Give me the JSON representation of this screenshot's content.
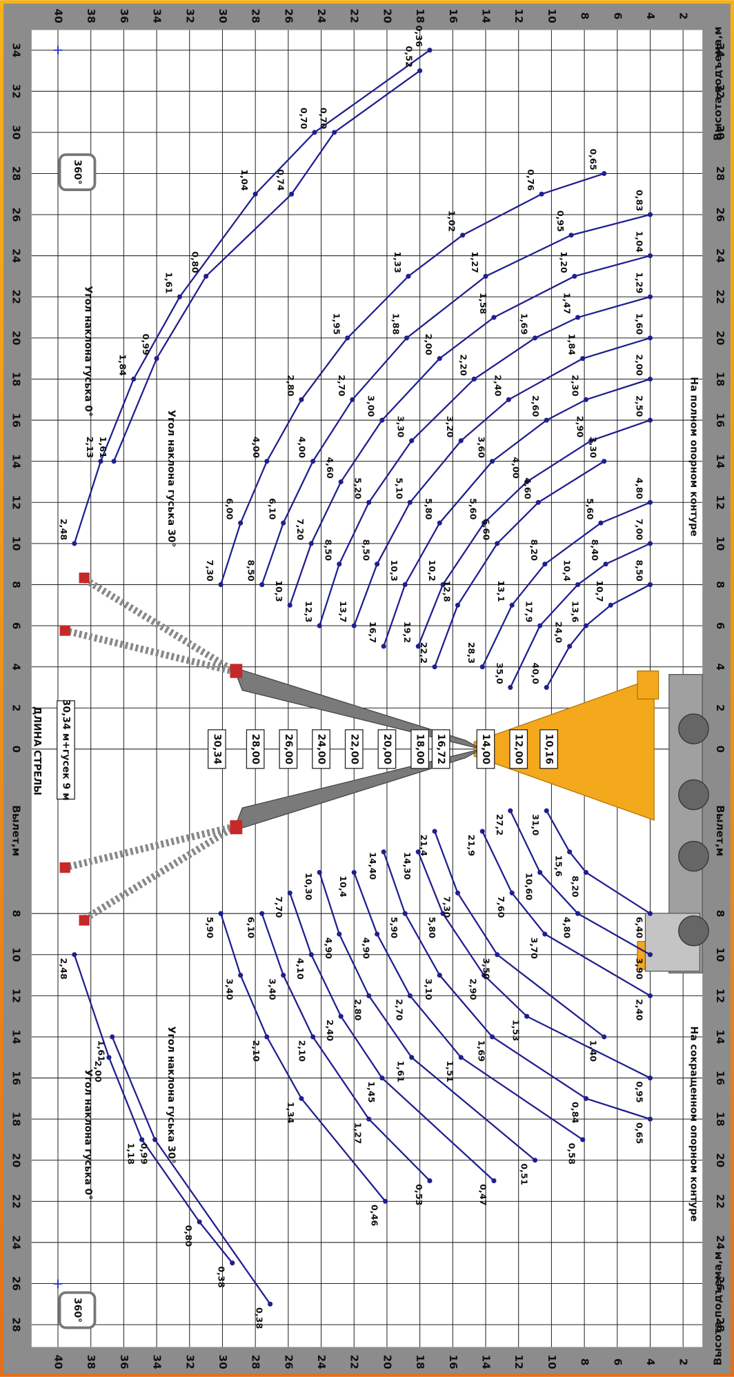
{
  "boom_length_title": "ДЛИНА СТРЕЛЫ",
  "boom_config": "30,34 м+гусек 9 м",
  "rotation_label": "360°",
  "boom_lengths": [
    {
      "value": 30.34,
      "label": "30,34"
    },
    {
      "value": 28,
      "label": "28,00"
    },
    {
      "value": 26,
      "label": "26,00"
    },
    {
      "value": 24,
      "label": "24,00"
    },
    {
      "value": 22,
      "label": "22,00"
    },
    {
      "value": 20,
      "label": "20,00"
    },
    {
      "value": 18,
      "label": "18,00"
    },
    {
      "value": 16.72,
      "label": "16,72"
    },
    {
      "value": 14,
      "label": "14,00"
    },
    {
      "value": 12,
      "label": "12,00"
    },
    {
      "value": 10.16,
      "label": "10,16"
    }
  ],
  "chart_data": [
    {
      "type": "line",
      "title": "На полном опорном контуре",
      "y_label": "Высота подъема,м",
      "xlim": [
        0,
        34
      ],
      "xticks": [
        0,
        2,
        4,
        6,
        8,
        10,
        12,
        14,
        16,
        18,
        20,
        22,
        24,
        26,
        28,
        30,
        32,
        34
      ],
      "ylim": [
        2,
        40
      ],
      "yticks": [
        2,
        4,
        6,
        8,
        10,
        12,
        14,
        16,
        18,
        20,
        22,
        24,
        26,
        28,
        30,
        32,
        34,
        36,
        38,
        40
      ],
      "grid": true,
      "series": [
        {
          "name": "Угол наклона гуська 0°",
          "color": "#1f1f8f",
          "x": [
            10,
            14,
            18,
            22,
            27,
            30,
            34
          ],
          "values": [
            39,
            37.4,
            35.4,
            32.6,
            28,
            24.4,
            17.4
          ],
          "point_labels": [
            "2,48",
            "2,13",
            "1,84",
            "1,61",
            "1,04",
            "0,70",
            "0,36"
          ]
        },
        {
          "name": "Угол наклона гуська 30°",
          "color": "#1f1f8f",
          "x": [
            14,
            19,
            23,
            27,
            30,
            33
          ],
          "values": [
            36.6,
            34,
            31,
            25.8,
            23.2,
            18
          ],
          "point_labels": [
            "1,61",
            "0,99",
            "0,80",
            "0,74",
            "0,70",
            "0,52"
          ]
        },
        {
          "color": "#1f1f8f",
          "x": [
            8,
            11,
            14,
            17,
            20,
            23,
            25,
            27,
            28
          ],
          "values": [
            30.1,
            28.9,
            27.3,
            25.2,
            22.4,
            18.7,
            15.4,
            10.6,
            6.8
          ],
          "point_labels": [
            "7,30",
            "6,00",
            "4,00",
            "2,80",
            "1,95",
            "1,33",
            "1,02",
            "0,76",
            "0,65"
          ]
        },
        {
          "color": "#1f1f8f",
          "x": [
            8,
            11,
            14,
            17,
            20,
            23,
            25,
            26
          ],
          "values": [
            27.6,
            26.3,
            24.5,
            22.1,
            18.8,
            14,
            8.8,
            4
          ],
          "point_labels": [
            "8,50",
            "6,10",
            "4,00",
            "2,70",
            "1,88",
            "1,27",
            "0,95",
            "0,83"
          ]
        },
        {
          "color": "#1f1f8f",
          "x": [
            7,
            10,
            13,
            16,
            19,
            21,
            23,
            24
          ],
          "values": [
            25.9,
            24.6,
            22.8,
            20.3,
            16.8,
            13.5,
            8.6,
            4
          ],
          "point_labels": [
            "10,3",
            "7,20",
            "4,60",
            "3,00",
            "2,00",
            "1,58",
            "1,20",
            "1,04"
          ]
        },
        {
          "color": "#1f1f8f",
          "x": [
            6,
            9,
            12,
            15,
            18,
            20,
            21,
            22
          ],
          "values": [
            24.1,
            22.9,
            21.1,
            18.5,
            14.7,
            11,
            8.4,
            4
          ],
          "point_labels": [
            "12,3",
            "8,50",
            "5,20",
            "3,30",
            "2,20",
            "1,69",
            "1,47",
            "1,29"
          ]
        },
        {
          "color": "#1f1f8f",
          "x": [
            6,
            9,
            12,
            15,
            17,
            19,
            20
          ],
          "values": [
            22,
            20.6,
            18.6,
            15.5,
            12.6,
            8.1,
            4
          ],
          "point_labels": [
            "13,7",
            "8,50",
            "5,10",
            "3,20",
            "2,40",
            "1,84",
            "1,60"
          ]
        },
        {
          "color": "#1f1f8f",
          "x": [
            5,
            8,
            11,
            14,
            16,
            17,
            18
          ],
          "values": [
            20.2,
            18.9,
            16.8,
            13.6,
            10.3,
            7.9,
            4
          ],
          "point_labels": [
            "16,7",
            "10,3",
            "5,80",
            "3,60",
            "2,60",
            "2,30",
            "2,00"
          ]
        },
        {
          "color": "#1f1f8f",
          "x": [
            5,
            8,
            11,
            13,
            15,
            16
          ],
          "values": [
            18.1,
            16.6,
            14.1,
            11.5,
            7.6,
            4
          ],
          "point_labels": [
            "19,2",
            "10,2",
            "5,60",
            "4,00",
            "2,90",
            "2,50"
          ]
        },
        {
          "color": "#1f1f8f",
          "x": [
            4,
            7,
            10,
            12,
            14
          ],
          "values": [
            17.1,
            15.7,
            13.3,
            10.8,
            6.8
          ],
          "point_labels": [
            "22,2",
            "12,8",
            "6,60",
            "4,60",
            "3,30"
          ]
        },
        {
          "color": "#1f1f8f",
          "x": [
            4,
            7,
            9,
            11,
            12
          ],
          "values": [
            14.2,
            12.4,
            10.4,
            7,
            4
          ],
          "point_labels": [
            "28,3",
            "13,1",
            "8,20",
            "5,60",
            "4,80"
          ]
        },
        {
          "color": "#1f1f8f",
          "x": [
            3,
            6,
            8,
            9,
            10
          ],
          "values": [
            12.5,
            10.7,
            8.4,
            6.7,
            4
          ],
          "point_labels": [
            "35,0",
            "17,9",
            "10,4",
            "8,40",
            "7,00"
          ]
        },
        {
          "color": "#1f1f8f",
          "x": [
            3,
            5,
            6,
            7,
            8
          ],
          "values": [
            10.3,
            8.9,
            7.9,
            6.4,
            4
          ],
          "point_labels": [
            "40,0",
            "24,0",
            "13,6",
            "10,7",
            "8,50"
          ]
        }
      ]
    },
    {
      "type": "line",
      "title": "На сокращенном опорном контуре",
      "x_label": "Вылет,м",
      "y_label": "Высота подъема,м",
      "xlim": [
        0,
        28
      ],
      "xticks": [
        8,
        10,
        12,
        14,
        16,
        18,
        20,
        22,
        24,
        26,
        28
      ],
      "ylim": [
        2,
        40
      ],
      "yticks": [
        2,
        4,
        6,
        8,
        10,
        12,
        14,
        16,
        18,
        20,
        22,
        24,
        26,
        28,
        30,
        32,
        34,
        36,
        38,
        40
      ],
      "grid": true,
      "series": [
        {
          "name": "Угол наклона гуська 0°",
          "color": "#1f1f8f",
          "x": [
            10,
            15,
            19,
            23,
            25
          ],
          "values": [
            39,
            36.9,
            34.9,
            31.4,
            29.4
          ],
          "point_labels": [
            "2,48",
            "2,00",
            "1,18",
            "0,80",
            "0,38"
          ]
        },
        {
          "name": "Угол наклона гуська 30°",
          "color": "#1f1f8f",
          "x": [
            14,
            19,
            27
          ],
          "values": [
            36.7,
            34.1,
            27.1
          ],
          "point_labels": [
            "1,61",
            "0,99",
            "0,38"
          ]
        },
        {
          "color": "#1f1f8f",
          "x": [
            8,
            11,
            14,
            17,
            22
          ],
          "values": [
            30.1,
            28.9,
            27.3,
            25.2,
            20.1
          ],
          "point_labels": [
            "5,90",
            "3,40",
            "2,10",
            "1,34",
            "0,46"
          ]
        },
        {
          "color": "#1f1f8f",
          "x": [
            8,
            11,
            14,
            18,
            21
          ],
          "values": [
            27.6,
            26.3,
            24.5,
            21.1,
            17.4
          ],
          "point_labels": [
            "6,10",
            "3,40",
            "2,10",
            "1,27",
            "0,53"
          ]
        },
        {
          "color": "#1f1f8f",
          "x": [
            7,
            10,
            13,
            16,
            21
          ],
          "values": [
            25.9,
            24.6,
            22.8,
            20.3,
            13.5
          ],
          "point_labels": [
            "7,70",
            "4,10",
            "2,40",
            "1,45",
            "0,47"
          ]
        },
        {
          "color": "#1f1f8f",
          "x": [
            6,
            9,
            12,
            15,
            20
          ],
          "values": [
            24.1,
            22.9,
            21.1,
            18.5,
            11
          ],
          "point_labels": [
            "10,30",
            "4,90",
            "2,80",
            "1,61",
            "0,51"
          ]
        },
        {
          "color": "#1f1f8f",
          "x": [
            6,
            9,
            12,
            15,
            19
          ],
          "values": [
            22,
            20.6,
            18.6,
            15.5,
            8.1
          ],
          "point_labels": [
            "10,4",
            "4,90",
            "2,70",
            "1,51",
            "0,58"
          ]
        },
        {
          "color": "#1f1f8f",
          "x": [
            5,
            8,
            11,
            14,
            17,
            18
          ],
          "values": [
            20.2,
            18.9,
            16.8,
            13.6,
            7.9,
            4
          ],
          "point_labels": [
            "14,40",
            "5,90",
            "3,10",
            "1,69",
            "0,84",
            "0,65"
          ]
        },
        {
          "color": "#1f1f8f",
          "x": [
            5,
            8,
            11,
            13,
            16
          ],
          "values": [
            18.1,
            16.6,
            14.1,
            11.5,
            4
          ],
          "point_labels": [
            "14,30",
            "5,80",
            "2,90",
            "1,53",
            "0,95"
          ]
        },
        {
          "color": "#1f1f8f",
          "x": [
            4,
            7,
            10,
            14
          ],
          "values": [
            17.1,
            15.7,
            13.3,
            6.8
          ],
          "point_labels": [
            "21,4",
            "7,30",
            "3,50",
            "1,40"
          ]
        },
        {
          "color": "#1f1f8f",
          "x": [
            4,
            7,
            9,
            12
          ],
          "values": [
            14.2,
            12.4,
            10.4,
            4
          ],
          "point_labels": [
            "21,9",
            "7,60",
            "3,70",
            "2,40"
          ]
        },
        {
          "color": "#1f1f8f",
          "x": [
            3,
            6,
            8,
            10
          ],
          "values": [
            12.5,
            10.7,
            8.4,
            4
          ],
          "point_labels": [
            "27,2",
            "10,60",
            "4,80",
            "3,90"
          ]
        },
        {
          "color": "#1f1f8f",
          "x": [
            3,
            5,
            6,
            8
          ],
          "values": [
            10.3,
            8.9,
            7.9,
            4
          ],
          "point_labels": [
            "31,0",
            "15,6",
            "8,20",
            "6,40"
          ]
        }
      ]
    }
  ]
}
